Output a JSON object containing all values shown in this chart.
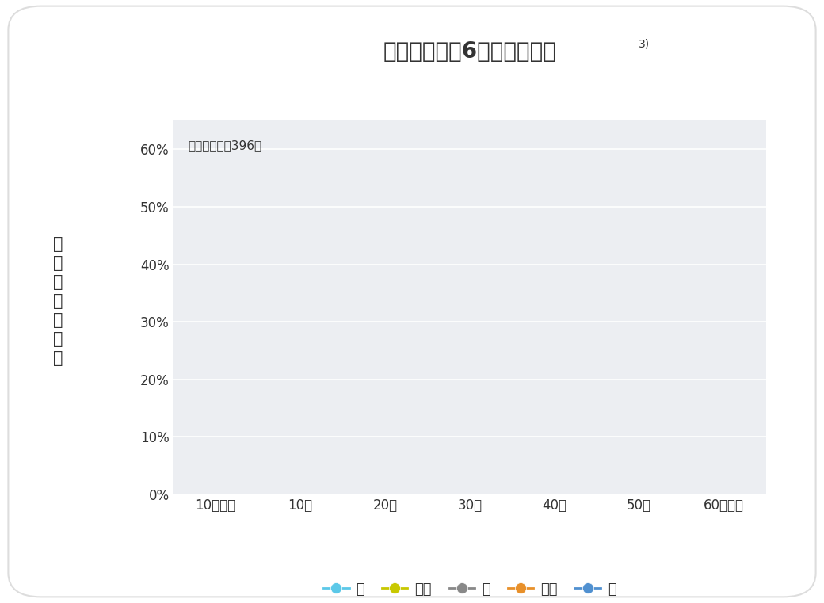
{
  "title_main": "年代別の直近6ヵ月の関節痛",
  "title_sup": "3)",
  "annotation": "有効回答数：396件",
  "ylabel_chars": [
    "痛",
    "み",
    "の",
    "あ",
    "る",
    "割",
    "合"
  ],
  "xlabel_ticks": [
    "10歳未満",
    "10代",
    "20代",
    "30代",
    "40代",
    "50代",
    "60歳以上"
  ],
  "yticks": [
    0.0,
    0.1,
    0.2,
    0.3,
    0.4,
    0.5,
    0.6
  ],
  "ytick_labels": [
    "0%",
    "10%",
    "20%",
    "30%",
    "40%",
    "50%",
    "60%"
  ],
  "ylim": [
    0,
    0.65
  ],
  "series": [
    {
      "label": "肩",
      "color": "#5bc8e8"
    },
    {
      "label": "ひじ",
      "color": "#c8c800"
    },
    {
      "label": "股",
      "color": "#888888"
    },
    {
      "label": "ひざ",
      "color": "#e8902a"
    },
    {
      "label": "足",
      "color": "#5090d0"
    }
  ],
  "plot_bg": "#eceef2",
  "outer_bg": "#ffffff",
  "grid_color": "#ffffff",
  "axis_line_color": "#cccccc",
  "text_color": "#333333",
  "annotation_fontsize": 11,
  "title_fontsize": 20,
  "tick_fontsize": 12,
  "ylabel_fontsize": 15,
  "legend_fontsize": 13
}
